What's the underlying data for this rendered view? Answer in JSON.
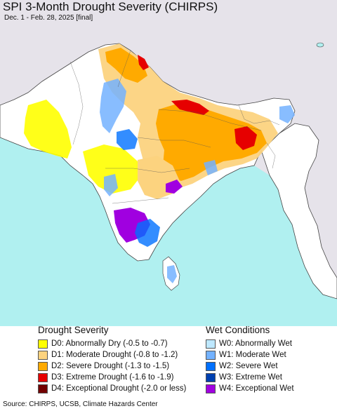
{
  "header": {
    "title": "SPI 3-Month Drought Severity (CHIRPS)",
    "subtitle": "Dec. 1 - Feb. 28, 2025 [final]"
  },
  "colors": {
    "ocean": "#b0f0f0",
    "land_neutral": "#ffffff",
    "outside_region": "#e6e3ea",
    "border": "#444444"
  },
  "legend": {
    "drought": {
      "heading": "Drought Severity",
      "items": [
        {
          "label": "D0: Abnormally Dry (-0.5 to -0.7)",
          "color": "#ffff00"
        },
        {
          "label": "D1: Moderate Drought (-0.8 to -1.2)",
          "color": "#fcd37f"
        },
        {
          "label": "D2: Severe Drought (-1.3 to -1.5)",
          "color": "#ffaa00"
        },
        {
          "label": "D3: Extreme Drought (-1.6 to -1.9)",
          "color": "#e60000"
        },
        {
          "label": "D4: Exceptional Drought (-2.0 or less)",
          "color": "#730000"
        }
      ]
    },
    "wet": {
      "heading": "Wet Conditions",
      "items": [
        {
          "label": "W0: Abnormally Wet",
          "color": "#bee8ff"
        },
        {
          "label": "W1: Moderate Wet",
          "color": "#73b2ff"
        },
        {
          "label": "W2: Severe Wet",
          "color": "#0070ff"
        },
        {
          "label": "W3: Extreme Wet",
          "color": "#0040b0"
        },
        {
          "label": "W4: Exceptional Wet",
          "color": "#a000e0"
        }
      ]
    }
  },
  "footer": {
    "source": "Source: CHIRPS, UCSB, Climate Hazards Center"
  }
}
